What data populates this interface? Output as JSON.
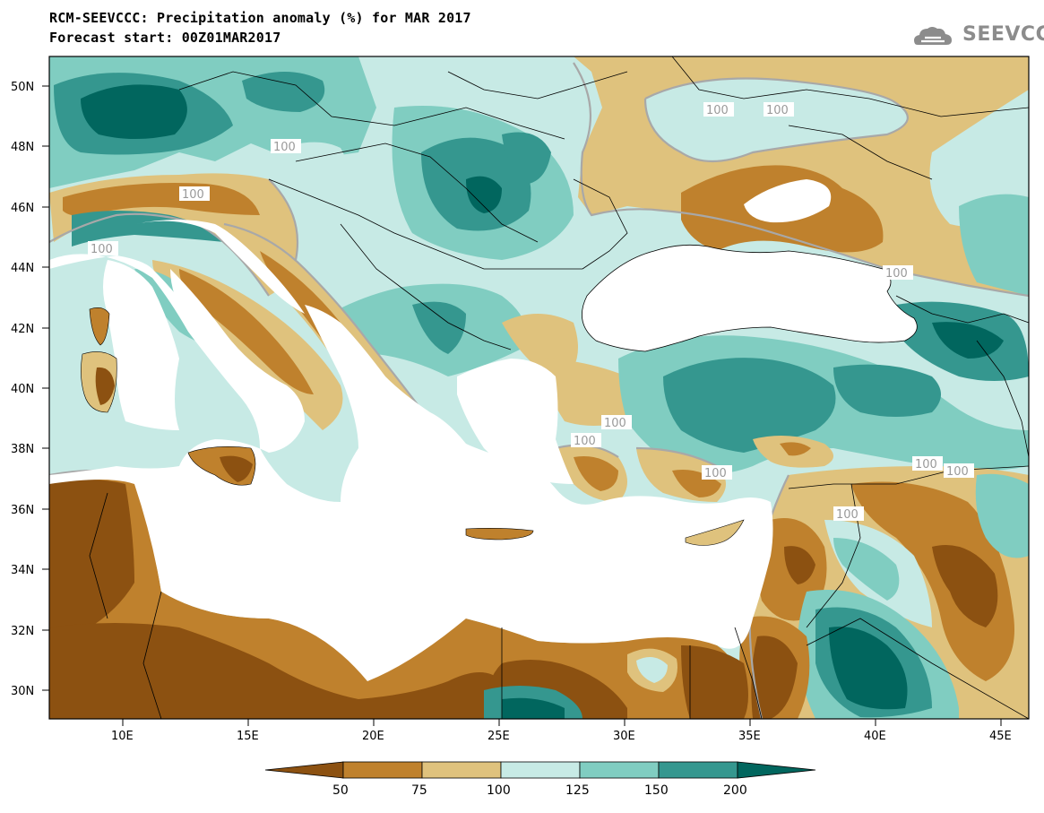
{
  "title": {
    "line1": "RCM-SEEVCCC: Precipitation anomaly (%) for MAR 2017",
    "line2": "Forecast start: 00Z01MAR2017"
  },
  "logo": {
    "text": "SEEVCCC",
    "icon": "cloud-icon"
  },
  "axes": {
    "lon_ticks": [
      "10E",
      "15E",
      "20E",
      "25E",
      "30E",
      "35E",
      "40E",
      "45E"
    ],
    "lat_ticks": [
      "50N",
      "48N",
      "46N",
      "44N",
      "42N",
      "40N",
      "38N",
      "36N",
      "34N",
      "32N",
      "30N"
    ]
  },
  "contour_label": "100",
  "colorbar": {
    "labels": [
      "50",
      "75",
      "100",
      "125",
      "150",
      "200"
    ],
    "colors": [
      "#8c5111",
      "#bf812d",
      "#dfc27d",
      "#c7eae5",
      "#80cdc1",
      "#35978f",
      "#01665e"
    ]
  },
  "colors": {
    "sea": "#ffffff",
    "contour": "#a8a8a8",
    "border": "#000000"
  }
}
